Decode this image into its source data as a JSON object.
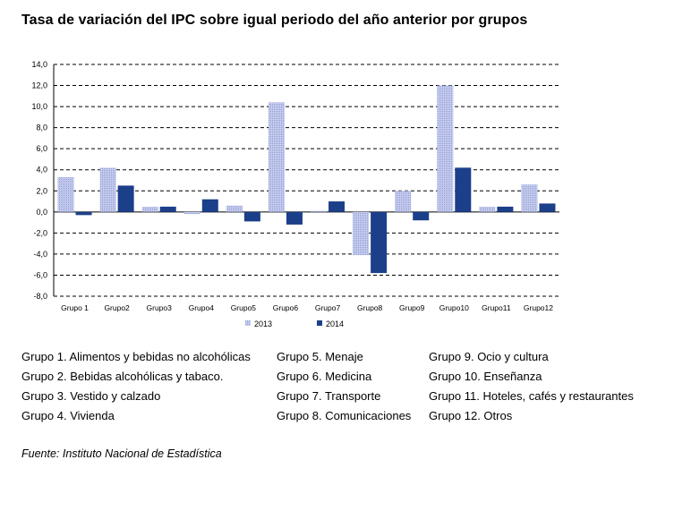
{
  "title": "Tasa de variación del IPC sobre igual periodo del año anterior por grupos",
  "chart_data": {
    "type": "bar",
    "categories": [
      "Grupo 1",
      "Grupo2",
      "Grupo3",
      "Grupo4",
      "Grupo5",
      "Grupo6",
      "Grupo7",
      "Grupo8",
      "Grupo9",
      "Grupo10",
      "Grupo11",
      "Grupo12"
    ],
    "series": [
      {
        "name": "2013",
        "color": "#a9b4e0",
        "pattern": "dotted",
        "values": [
          3.3,
          4.2,
          0.5,
          -0.2,
          0.6,
          10.4,
          0.1,
          -4.1,
          2.0,
          12.0,
          0.5,
          2.6
        ]
      },
      {
        "name": "2014",
        "color": "#1c3f8a",
        "pattern": "solid",
        "values": [
          -0.3,
          2.5,
          0.5,
          1.2,
          -0.9,
          -1.2,
          1.0,
          -5.8,
          -0.8,
          4.2,
          0.5,
          0.8
        ]
      }
    ],
    "ylim": [
      -8,
      14
    ],
    "yticks": [
      "14,0",
      "12,0",
      "10,0",
      "8,0",
      "6,0",
      "4,0",
      "2,0",
      "0,0",
      "-2,0",
      "-4,0",
      "-6,0",
      "-8,0"
    ],
    "ytick_values": [
      14,
      12,
      10,
      8,
      6,
      4,
      2,
      0,
      -2,
      -4,
      -6,
      -8
    ],
    "grid": "dashed horizontal",
    "legend_position": "bottom-center",
    "xlabel": "",
    "ylabel": ""
  },
  "groups_legend": {
    "col1": [
      "Grupo 1. Alimentos y bebidas no alcohólicas",
      "Grupo 2. Bebidas alcohólicas y  tabaco.",
      "Grupo 3. Vestido y calzado",
      "Grupo 4. Vivienda"
    ],
    "col2": [
      "Grupo 5. Menaje",
      "Grupo 6. Medicina",
      "Grupo 7. Transporte",
      "Grupo 8. Comunicaciones"
    ],
    "col3": [
      "Grupo 9. Ocio y cultura",
      "Grupo 10. Enseñanza",
      "Grupo 11. Hoteles, cafés y restaurantes",
      "Grupo 12. Otros"
    ]
  },
  "source": "Fuente: Instituto Nacional de Estadística"
}
